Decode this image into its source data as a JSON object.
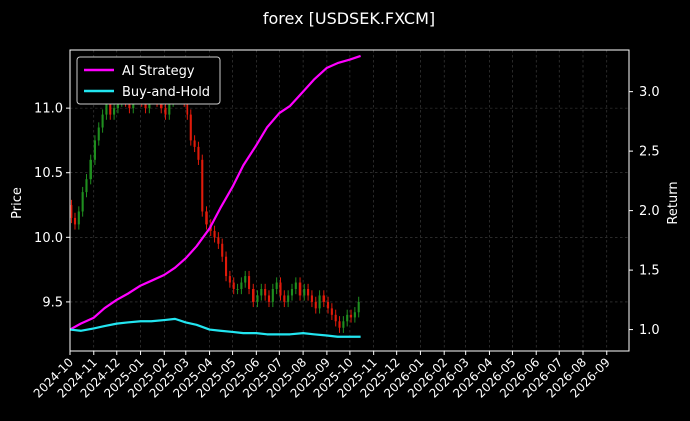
{
  "chart_data": {
    "type": "line",
    "title": "forex [USDSEK.FXCM]",
    "xlabel": "",
    "ylabel_left": "Price",
    "ylabel_right": "Return",
    "x_ticks": [
      "2024-10",
      "2024-11",
      "2024-12",
      "2025-01",
      "2025-02",
      "2025-03",
      "2025-04",
      "2025-05",
      "2025-06",
      "2025-07",
      "2025-08",
      "2025-09",
      "2025-10",
      "2025-11",
      "2025-12",
      "2026-01",
      "2026-02",
      "2026-03",
      "2026-04",
      "2026-05",
      "2026-06",
      "2026-07",
      "2026-08",
      "2026-09"
    ],
    "xlim": [
      "2024-10-01",
      "2026-09-30"
    ],
    "y_left_ticks": [
      "9.5",
      "10.0",
      "10.5",
      "11.0"
    ],
    "ylim_left": [
      9.12,
      11.45
    ],
    "y_right_ticks": [
      "1.0",
      "1.5",
      "2.0",
      "2.5",
      "3.0"
    ],
    "ylim_right": [
      0.82,
      3.35
    ],
    "grid": true,
    "legend_position": "top-left",
    "colors": {
      "background": "#000000",
      "grid": "#444444",
      "up_candle": "#1f8f1f",
      "down_candle": "#e01a0a",
      "ai_strategy": "#ff00ff",
      "buy_and_hold": "#22e5f0"
    },
    "price_series": {
      "name": "USDSEK",
      "x": [
        "2024-10-01",
        "2024-10-05",
        "2024-10-10",
        "2024-10-15",
        "2024-10-20",
        "2024-10-25",
        "2024-10-31",
        "2024-11-05",
        "2024-11-10",
        "2024-11-15",
        "2024-11-20",
        "2024-11-25",
        "2024-11-30",
        "2024-12-05",
        "2024-12-10",
        "2024-12-15",
        "2024-12-20",
        "2024-12-25",
        "2024-12-31",
        "2025-01-05",
        "2025-01-10",
        "2025-01-15",
        "2025-01-20",
        "2025-01-25",
        "2025-01-31",
        "2025-02-05",
        "2025-02-10",
        "2025-02-15",
        "2025-02-20",
        "2025-02-25",
        "2025-03-01",
        "2025-03-05",
        "2025-03-10",
        "2025-03-15",
        "2025-03-20",
        "2025-03-25",
        "2025-03-31",
        "2025-04-05",
        "2025-04-10",
        "2025-04-15",
        "2025-04-20",
        "2025-04-25",
        "2025-04-30",
        "2025-05-05",
        "2025-05-10",
        "2025-05-15",
        "2025-05-20",
        "2025-05-25",
        "2025-05-31",
        "2025-06-05",
        "2025-06-10",
        "2025-06-15",
        "2025-06-20",
        "2025-06-25",
        "2025-06-30",
        "2025-07-05",
        "2025-07-10",
        "2025-07-15",
        "2025-07-20",
        "2025-07-25",
        "2025-07-31",
        "2025-08-05",
        "2025-08-10",
        "2025-08-15",
        "2025-08-20",
        "2025-08-25",
        "2025-08-31",
        "2025-09-05",
        "2025-09-10",
        "2025-09-15",
        "2025-09-20",
        "2025-09-25",
        "2025-09-30",
        "2025-10-05",
        "2025-10-10",
        "2025-10-15"
      ],
      "values": [
        10.25,
        10.15,
        10.1,
        10.2,
        10.35,
        10.45,
        10.6,
        10.75,
        10.85,
        10.95,
        11.05,
        10.95,
        11.0,
        11.05,
        11.1,
        11.05,
        11.0,
        11.1,
        11.15,
        11.05,
        11.0,
        11.1,
        11.15,
        11.05,
        11.0,
        10.95,
        11.05,
        11.1,
        11.15,
        11.1,
        11.05,
        10.95,
        10.75,
        10.7,
        10.6,
        10.2,
        10.1,
        10.05,
        10.0,
        9.95,
        9.85,
        9.7,
        9.65,
        9.6,
        9.6,
        9.65,
        9.7,
        9.6,
        9.5,
        9.55,
        9.6,
        9.55,
        9.5,
        9.6,
        9.65,
        9.55,
        9.5,
        9.55,
        9.6,
        9.65,
        9.55,
        9.6,
        9.55,
        9.5,
        9.45,
        9.55,
        9.5,
        9.45,
        9.4,
        9.35,
        9.3,
        9.35,
        9.4,
        9.38,
        9.42,
        9.5
      ]
    },
    "series": [
      {
        "name": "AI Strategy",
        "axis": "right",
        "x": [
          "2024-10-01",
          "2024-10-15",
          "2024-11-01",
          "2024-11-15",
          "2024-12-01",
          "2024-12-15",
          "2025-01-01",
          "2025-01-15",
          "2025-02-01",
          "2025-02-15",
          "2025-03-01",
          "2025-03-15",
          "2025-04-01",
          "2025-04-15",
          "2025-05-01",
          "2025-05-15",
          "2025-06-01",
          "2025-06-15",
          "2025-07-01",
          "2025-07-15",
          "2025-08-01",
          "2025-08-15",
          "2025-09-01",
          "2025-09-15",
          "2025-10-01",
          "2025-10-15"
        ],
        "values": [
          1.0,
          1.05,
          1.1,
          1.18,
          1.25,
          1.3,
          1.37,
          1.41,
          1.46,
          1.52,
          1.6,
          1.7,
          1.85,
          2.02,
          2.2,
          2.38,
          2.55,
          2.7,
          2.82,
          2.88,
          3.0,
          3.1,
          3.2,
          3.24,
          3.27,
          3.3
        ]
      },
      {
        "name": "Buy-and-Hold",
        "axis": "right",
        "x": [
          "2024-10-01",
          "2024-10-15",
          "2024-11-01",
          "2024-11-15",
          "2024-12-01",
          "2024-12-15",
          "2025-01-01",
          "2025-01-15",
          "2025-02-01",
          "2025-02-15",
          "2025-03-01",
          "2025-03-15",
          "2025-04-01",
          "2025-04-15",
          "2025-05-01",
          "2025-05-15",
          "2025-06-01",
          "2025-06-15",
          "2025-07-01",
          "2025-07-15",
          "2025-08-01",
          "2025-08-15",
          "2025-09-01",
          "2025-09-15",
          "2025-10-01",
          "2025-10-15"
        ],
        "values": [
          1.0,
          0.99,
          1.01,
          1.03,
          1.05,
          1.06,
          1.07,
          1.07,
          1.08,
          1.09,
          1.06,
          1.04,
          1.0,
          0.99,
          0.98,
          0.97,
          0.97,
          0.96,
          0.96,
          0.96,
          0.97,
          0.96,
          0.95,
          0.94,
          0.94,
          0.94
        ]
      }
    ]
  }
}
